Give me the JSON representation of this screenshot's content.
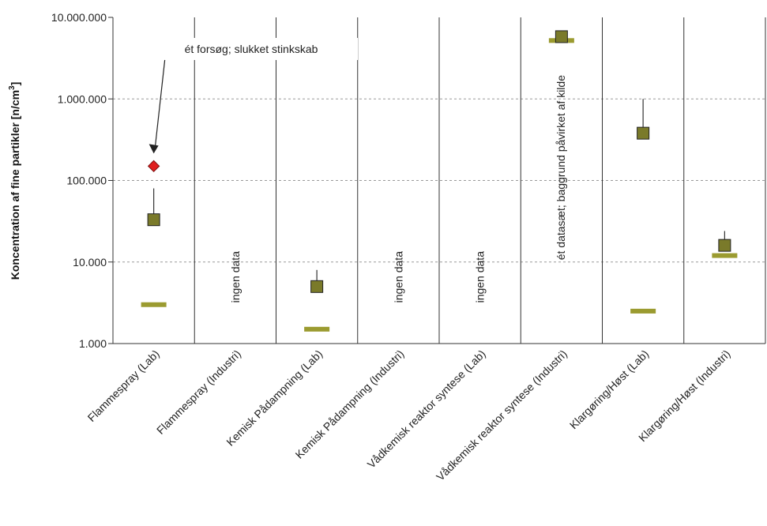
{
  "chart_data": {
    "type": "scatter",
    "ylabel": "Koncentration af fine partikler [n/cm",
    "ylabel_sup": "3",
    "ylabel_end": "]",
    "yscale": "log",
    "ylim": [
      1000,
      10000000
    ],
    "yticks": [
      1000,
      10000,
      100000,
      1000000,
      10000000
    ],
    "ytick_labels": [
      "1.000",
      "10.000",
      "100.000",
      "1.000.000",
      "10.000.000"
    ],
    "grid": "horizontal dashed",
    "categories": [
      "Flammespray (Lab)",
      "Flammespray (Industri)",
      "Kemisk Pådampning (Lab)",
      "Kemisk Pådampning (Industri)",
      "Vådkemisk reaktor syntese (Lab)",
      "Vådkemisk reaktor syntese (Industri)",
      "Klargøring/Høst (Lab)",
      "Klargøring/Høst (Industri)"
    ],
    "series": [
      {
        "marker": "square",
        "color": "#7a7a2a",
        "values": [
          33000,
          null,
          5000,
          null,
          null,
          5800000,
          380000,
          16000
        ],
        "whisker_top": [
          80000,
          null,
          8000,
          null,
          null,
          null,
          1000000,
          24000
        ]
      },
      {
        "marker": "dash",
        "color": "#9b9b30",
        "values": [
          3000,
          null,
          1500,
          null,
          null,
          5200000,
          2500,
          12000
        ]
      },
      {
        "marker": "diamond",
        "color": "#e02020",
        "values": [
          150000,
          null,
          null,
          null,
          null,
          null,
          null,
          null
        ]
      }
    ],
    "annotations": [
      {
        "text": "ét forsøg; slukket stinkskab",
        "category_index": 0
      },
      {
        "text": "ingen data",
        "category_index": 1
      },
      {
        "text": "ingen data",
        "category_index": 3
      },
      {
        "text": "ingen data",
        "category_index": 4
      },
      {
        "text": "ét datasæt; baggrund påvirket af kilde",
        "category_index": 5
      }
    ]
  }
}
